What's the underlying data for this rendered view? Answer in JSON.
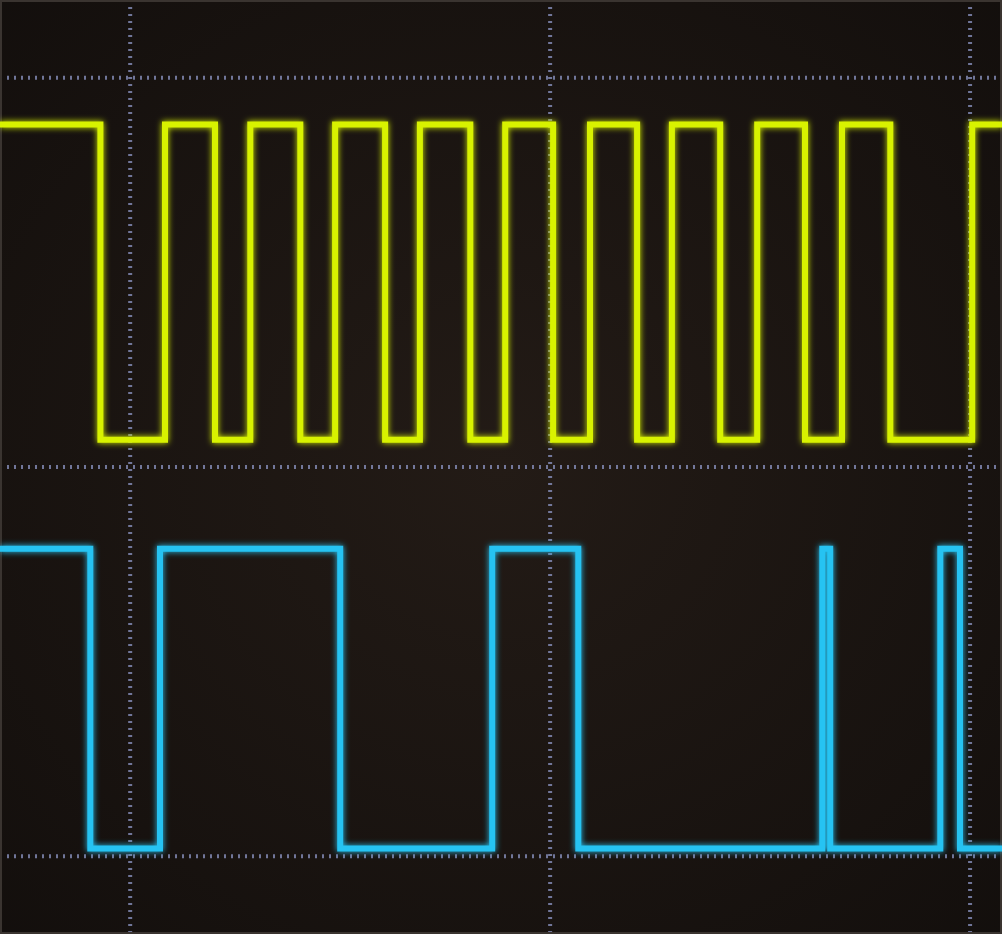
{
  "chart_data": {
    "type": "line",
    "grid": true,
    "tick_labels": false,
    "xlim": [
      -0.31,
      2.076
    ],
    "ylim": [
      -1.2,
      1.2
    ],
    "xticks": [
      0,
      1,
      2
    ],
    "yticks": [
      -1,
      0,
      1
    ],
    "series": [
      {
        "color": "#d8f200",
        "line_style": "solid",
        "x": [
          -0.31,
          -0.071,
          -0.071,
          0.083,
          0.083,
          0.202,
          0.202,
          0.286,
          0.286,
          0.405,
          0.405,
          0.488,
          0.488,
          0.607,
          0.607,
          0.69,
          0.69,
          0.81,
          0.81,
          0.893,
          0.893,
          1.007,
          1.007,
          1.095,
          1.095,
          1.207,
          1.207,
          1.29,
          1.29,
          1.405,
          1.405,
          1.493,
          1.493,
          1.607,
          1.607,
          1.695,
          1.695,
          1.81,
          1.81,
          2.005,
          2.005,
          2.076
        ],
        "values": [
          0.88,
          0.88,
          0.07,
          0.07,
          0.88,
          0.88,
          0.07,
          0.07,
          0.88,
          0.88,
          0.07,
          0.07,
          0.88,
          0.88,
          0.07,
          0.07,
          0.88,
          0.88,
          0.07,
          0.07,
          0.88,
          0.88,
          0.07,
          0.07,
          0.88,
          0.88,
          0.07,
          0.07,
          0.88,
          0.88,
          0.07,
          0.07,
          0.88,
          0.88,
          0.07,
          0.07,
          0.88,
          0.88,
          0.07,
          0.07,
          0.88,
          0.88
        ]
      },
      {
        "color": "#25c3f2",
        "line_style": "solid",
        "x": [
          -0.31,
          -0.095,
          -0.095,
          0.071,
          0.071,
          0.5,
          0.5,
          0.862,
          0.862,
          1.067,
          1.067,
          1.648,
          1.648,
          1.667,
          1.667,
          1.929,
          1.929,
          1.976,
          1.976,
          2.076
        ],
        "values": [
          -0.21,
          -0.21,
          -0.98,
          -0.98,
          -0.21,
          -0.21,
          -0.98,
          -0.98,
          -0.21,
          -0.21,
          -0.98,
          -0.98,
          -0.21,
          -0.21,
          -0.98,
          -0.98,
          -0.21,
          -0.21,
          -0.98,
          -0.98
        ]
      }
    ]
  }
}
